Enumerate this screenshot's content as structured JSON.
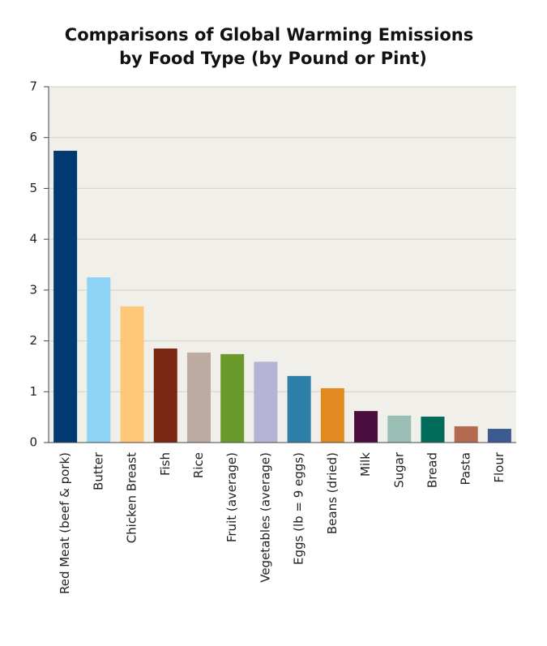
{
  "chart_data": {
    "type": "bar",
    "title": [
      "Comparisons of Global Warming Emissions",
      "by Food Type (by Pound or Pint)"
    ],
    "categories": [
      "Red Meat (beef & pork)",
      "Butter",
      "Chicken Breast",
      "Fish",
      "Rice",
      "Fruit (average)",
      "Vegetables (average)",
      "Eggs (lb = 9 eggs)",
      "Beans (dried)",
      "Milk",
      "Sugar",
      "Bread",
      "Pasta",
      "Flour"
    ],
    "values": [
      5.74,
      3.25,
      2.68,
      1.85,
      1.77,
      1.74,
      1.59,
      1.31,
      1.07,
      0.62,
      0.53,
      0.51,
      0.32,
      0.27
    ],
    "colors": [
      "#003a70",
      "#8dd3f5",
      "#fdc87a",
      "#7a2610",
      "#bdaaa0",
      "#6a9a2c",
      "#b5b3d6",
      "#2b7fa8",
      "#e08a20",
      "#4a0e40",
      "#9bbfb4",
      "#006b5a",
      "#b56a50",
      "#3a5a90"
    ],
    "ylim": [
      0,
      7
    ],
    "yticks": [
      0,
      1,
      2,
      3,
      4,
      5,
      6,
      7
    ],
    "grid": true
  }
}
